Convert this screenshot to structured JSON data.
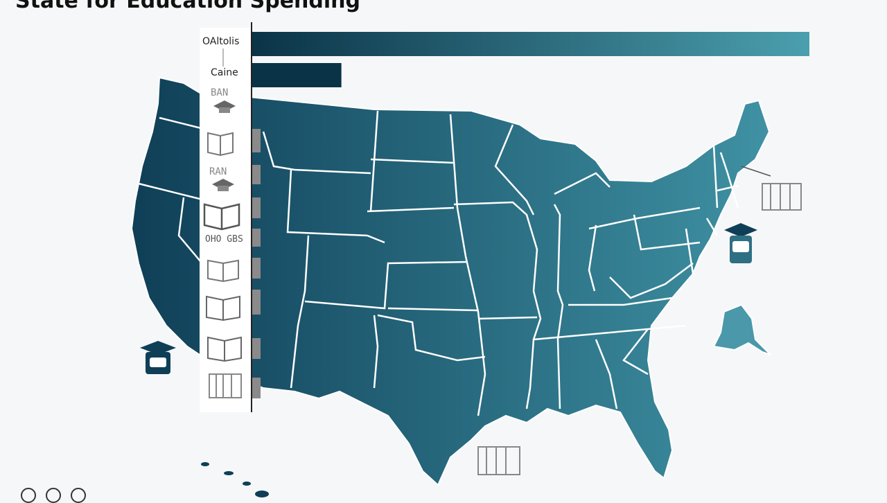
{
  "title": "State for Education Spending",
  "chart_data": {
    "type": "bar",
    "orientation": "horizontal",
    "categories": [
      "OAltolis",
      "Caine"
    ],
    "values": [
      100,
      16
    ],
    "xlim": [
      0,
      100
    ],
    "colors": {
      "bar_start": "#0b3347",
      "bar_end": "#4b9fae",
      "map_west": "#0f3f57",
      "map_east": "#3f91a3",
      "border": "#ffffff"
    },
    "tick_labels": [
      "BAN",
      "RAN",
      "OHO GBS"
    ]
  },
  "icons": [
    "graduation-cap-icon",
    "book-icon",
    "book-icon",
    "book-icon",
    "book-icon",
    "book-icon",
    "bookshelf-icon",
    "bookshelf-icon"
  ]
}
